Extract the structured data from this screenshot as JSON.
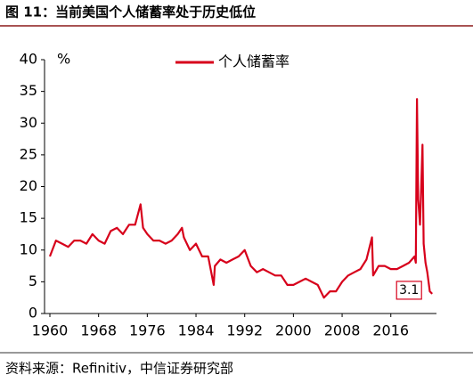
{
  "chart_data": {
    "type": "line",
    "title": "图 11：当前美国个人储蓄率处于历史低位",
    "unit": "%",
    "source": "资料来源：Refinitiv，中信证券研究部",
    "x": [
      1960,
      1961,
      1962,
      1963,
      1964,
      1965,
      1966,
      1967,
      1968,
      1969,
      1970,
      1971,
      1972,
      1973,
      1974,
      1974.9,
      1975.3,
      1976,
      1977,
      1978,
      1979,
      1980,
      1981,
      1981.7,
      1982,
      1983,
      1984,
      1985,
      1986,
      1986.9,
      1987.1,
      1988,
      1989,
      1990,
      1991,
      1992,
      1993,
      1994,
      1995,
      1996,
      1997,
      1998,
      1999,
      2000,
      2001,
      2002,
      2003,
      2004,
      2005,
      2006,
      2007,
      2008,
      2009,
      2010,
      2011,
      2012,
      2012.9,
      2013.1,
      2014,
      2015,
      2016,
      2017,
      2018,
      2019,
      2019.9,
      2020.1,
      2020.3,
      2020.5,
      2020.8,
      2021.0,
      2021.2,
      2021.4,
      2021.7,
      2022.0,
      2022.4,
      2022.8
    ],
    "series": [
      {
        "name": "个人储蓄率",
        "color": "#d7001b",
        "values": [
          9.0,
          11.5,
          11.0,
          10.5,
          11.5,
          11.5,
          11.0,
          12.5,
          11.5,
          11.0,
          13.0,
          13.5,
          12.5,
          14.0,
          14.0,
          17.2,
          13.5,
          12.5,
          11.5,
          11.5,
          11.0,
          11.5,
          12.5,
          13.5,
          12.0,
          10.0,
          11.0,
          9.0,
          9.0,
          4.5,
          7.5,
          8.5,
          8.0,
          8.5,
          9.0,
          10.0,
          7.5,
          6.5,
          7.0,
          6.5,
          6.0,
          6.0,
          4.5,
          4.5,
          5.0,
          5.5,
          5.0,
          4.5,
          2.5,
          3.5,
          3.5,
          5.0,
          6.0,
          6.5,
          7.0,
          8.5,
          12.0,
          6.0,
          7.5,
          7.5,
          7.0,
          7.0,
          7.5,
          8.0,
          9.0,
          8.0,
          33.8,
          18.0,
          14.0,
          20.0,
          26.6,
          11.0,
          8.0,
          6.5,
          3.5,
          3.1
        ],
        "value_labels": [
          null,
          null,
          null,
          null,
          null,
          null,
          null,
          null,
          null,
          null,
          null,
          null,
          null,
          null,
          null,
          null,
          null,
          null,
          null,
          null,
          null,
          null,
          null,
          null,
          null,
          null,
          null,
          null,
          null,
          null,
          null,
          null,
          null,
          null,
          null,
          null,
          null,
          null,
          null,
          null,
          null,
          null,
          null,
          null,
          null,
          null,
          null,
          null,
          null,
          null,
          null,
          null,
          null,
          null,
          null,
          null,
          null,
          null,
          null,
          null,
          null,
          null,
          null,
          null,
          null,
          null,
          null,
          null,
          null,
          null,
          null,
          null,
          null,
          null,
          null,
          "3.1"
        ]
      }
    ],
    "xlim": [
      1960,
      2023.5
    ],
    "xticks": [
      1960,
      1968,
      1976,
      1984,
      1992,
      2000,
      2008,
      2016
    ],
    "ylim": [
      0,
      40
    ],
    "yticks": [
      0,
      5,
      10,
      15,
      20,
      25,
      30,
      35,
      40
    ],
    "legend": "top"
  }
}
